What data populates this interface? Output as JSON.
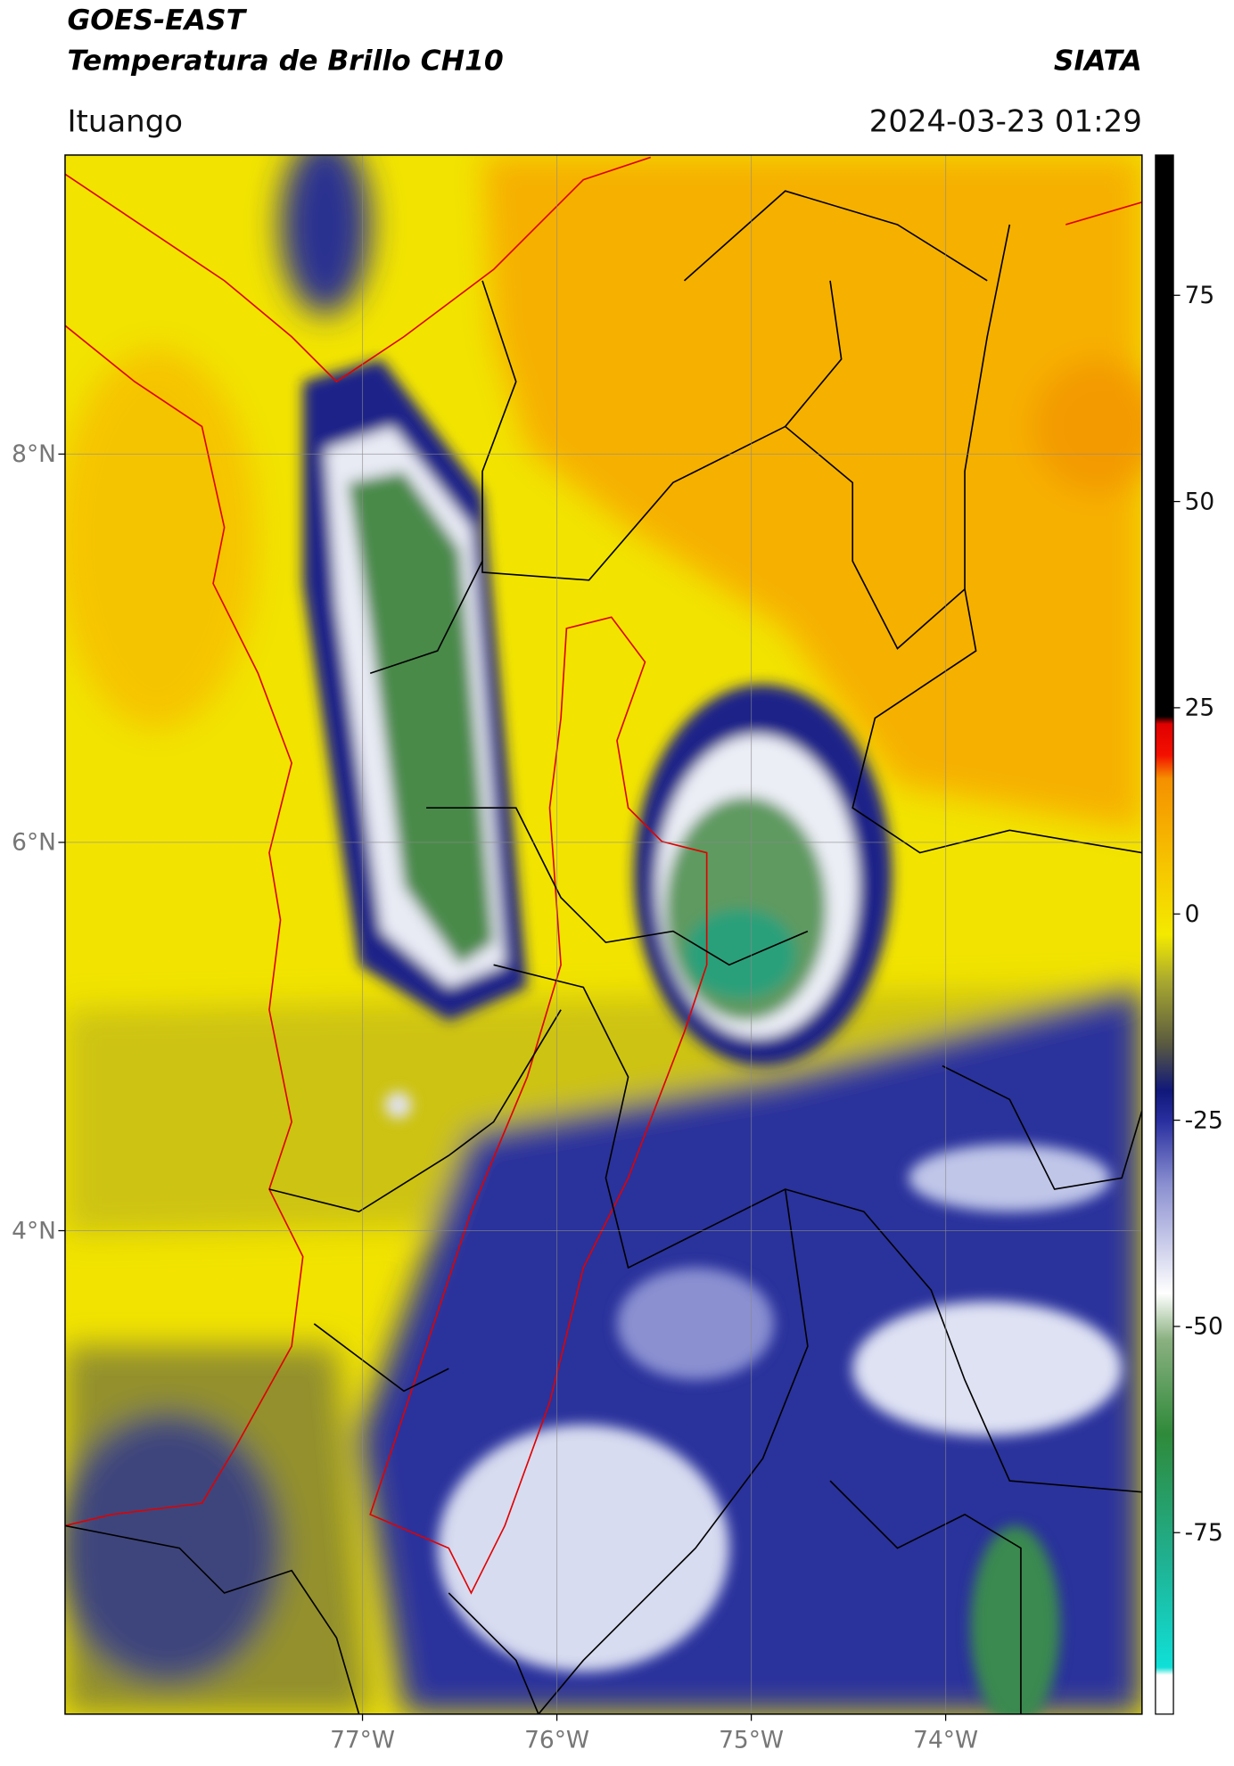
{
  "header": {
    "title": "GOES-EAST",
    "subtitle": "Temperatura de Brillo CH10",
    "agency": "SIATA",
    "location": "Ituango",
    "datetime": "2024-03-23 01:29"
  },
  "map": {
    "xlim": [
      -78.53,
      -72.99
    ],
    "ylim": [
      1.51,
      9.54
    ],
    "xticks": [
      {
        "value": -77,
        "label": "77°W"
      },
      {
        "value": -76,
        "label": "76°W"
      },
      {
        "value": -75,
        "label": "75°W"
      },
      {
        "value": -74,
        "label": "74°W"
      }
    ],
    "yticks": [
      {
        "value": 8,
        "label": "8°N"
      },
      {
        "value": 6,
        "label": "6°N"
      },
      {
        "value": 4,
        "label": "4°N"
      }
    ]
  },
  "colorbar": {
    "lim": [
      -97,
      92
    ],
    "ticks": [
      -75,
      -50,
      -25,
      0,
      25,
      50,
      75
    ]
  }
}
